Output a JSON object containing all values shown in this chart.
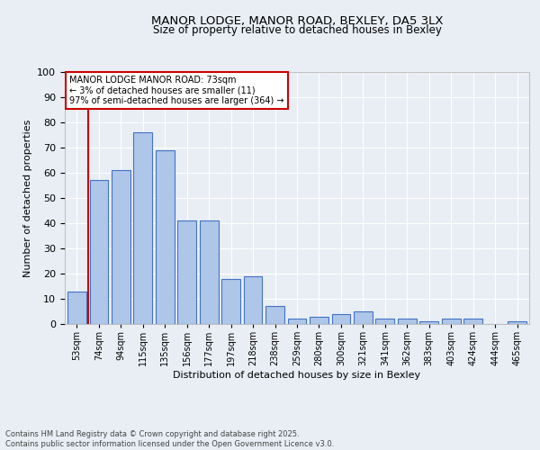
{
  "title_line1": "MANOR LODGE, MANOR ROAD, BEXLEY, DA5 3LX",
  "title_line2": "Size of property relative to detached houses in Bexley",
  "categories": [
    "53sqm",
    "74sqm",
    "94sqm",
    "115sqm",
    "135sqm",
    "156sqm",
    "177sqm",
    "197sqm",
    "218sqm",
    "238sqm",
    "259sqm",
    "280sqm",
    "300sqm",
    "321sqm",
    "341sqm",
    "362sqm",
    "383sqm",
    "403sqm",
    "424sqm",
    "444sqm",
    "465sqm"
  ],
  "values": [
    13,
    57,
    61,
    76,
    69,
    41,
    41,
    18,
    19,
    7,
    2,
    3,
    4,
    5,
    2,
    2,
    1,
    2,
    2,
    0,
    1
  ],
  "bar_color": "#aec6e8",
  "bar_edge_color": "#4472c4",
  "ylabel": "Number of detached properties",
  "xlabel": "Distribution of detached houses by size in Bexley",
  "ylim": [
    0,
    100
  ],
  "yticks": [
    0,
    10,
    20,
    30,
    40,
    50,
    60,
    70,
    80,
    90,
    100
  ],
  "vline_color": "#cc0000",
  "annotation_box_text": "MANOR LODGE MANOR ROAD: 73sqm\n← 3% of detached houses are smaller (11)\n97% of semi-detached houses are larger (364) →",
  "footer_line1": "Contains HM Land Registry data © Crown copyright and database right 2025.",
  "footer_line2": "Contains public sector information licensed under the Open Government Licence v3.0.",
  "background_color": "#e8eef4",
  "grid_color": "#ffffff"
}
